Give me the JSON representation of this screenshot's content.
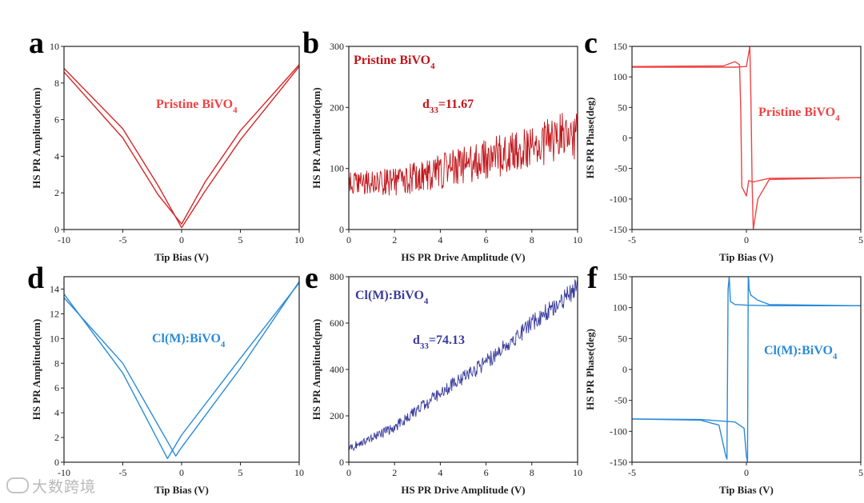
{
  "watermark": "大数跨境",
  "colors": {
    "red": "#d62728",
    "red_light": "#ee4444",
    "blue": "#2a8bd8",
    "navy": "#3a3c9c",
    "axis": "#222222"
  },
  "chart_data": [
    {
      "id": "a",
      "letter": "a",
      "type": "line",
      "xlabel": "Tip Bias (V)",
      "ylabel": "HS PR Amplitude(nm)",
      "xlim": [
        -10,
        10
      ],
      "ylim": [
        0,
        10
      ],
      "xticks": [
        -10,
        -5,
        0,
        5,
        10
      ],
      "yticks": [
        0,
        2,
        4,
        6,
        8,
        10
      ],
      "annotation": {
        "main": "Pristine BiVO",
        "sub": "4",
        "color": "#ee4444"
      },
      "series": [
        {
          "color": "#d62728",
          "x": [
            -10,
            -5,
            -2,
            0,
            2,
            5,
            10
          ],
          "y": [
            8.8,
            5.5,
            2.4,
            0.1,
            2.1,
            4.9,
            8.9
          ]
        },
        {
          "color": "#d62728",
          "x": [
            -10,
            -5,
            -2,
            0,
            2,
            5,
            10
          ],
          "y": [
            8.6,
            5.0,
            1.9,
            0.3,
            2.6,
            5.4,
            9.0
          ]
        }
      ]
    },
    {
      "id": "b",
      "letter": "b",
      "type": "scatter-line",
      "xlabel": "HS PR Drive Amplitude (V)",
      "ylabel": "HS PR Amplitude(pm)",
      "xlim": [
        0,
        10
      ],
      "ylim": [
        0,
        300
      ],
      "xticks": [
        0,
        2,
        4,
        6,
        8,
        10
      ],
      "yticks": [
        0,
        100,
        200,
        300
      ],
      "annotation": {
        "main": "Pristine BiVO",
        "sub": "4",
        "color": "#c0151a"
      },
      "d33": {
        "prefix": "d",
        "sub": "33",
        "value": "=11.67",
        "color": "#c0151a"
      },
      "series": [
        {
          "color": "#c0151a",
          "x": [
            0,
            2,
            4,
            6,
            8,
            10
          ],
          "y": [
            75,
            78,
            95,
            115,
            135,
            160
          ],
          "noise": 30
        }
      ]
    },
    {
      "id": "c",
      "letter": "c",
      "type": "line",
      "xlabel": "Tip Bias (V)",
      "ylabel": "HS PR Phase(deg)",
      "xlim": [
        -5,
        5
      ],
      "ylim": [
        -150,
        150
      ],
      "xticks": [
        -5,
        0,
        5
      ],
      "yticks": [
        -150,
        -100,
        -50,
        0,
        50,
        100,
        150
      ],
      "annotation": {
        "main": "Pristine BiVO",
        "sub": "4",
        "color": "#ee4444"
      },
      "series": [
        {
          "color": "#ee4444",
          "x": [
            -5,
            -1,
            -0.5,
            -0.3,
            -0.25,
            -0.2,
            0,
            0.1,
            0.3,
            1,
            5
          ],
          "y": [
            117,
            118,
            125,
            120,
            50,
            -80,
            -95,
            -70,
            -72,
            -66,
            -65
          ]
        },
        {
          "color": "#ee4444",
          "x": [
            -5,
            -0.5,
            0,
            0.15,
            0.2,
            0.25,
            0.3,
            0.5,
            1,
            5
          ],
          "y": [
            116,
            116,
            117,
            150,
            60,
            -70,
            -150,
            -100,
            -68,
            -65
          ]
        }
      ]
    },
    {
      "id": "d",
      "letter": "d",
      "type": "line",
      "xlabel": "Tip Bias (V)",
      "ylabel": "HS PR Amplitude(nm)",
      "xlim": [
        -10,
        10
      ],
      "ylim": [
        0,
        15
      ],
      "xticks": [
        -10,
        -5,
        0,
        5,
        10
      ],
      "yticks": [
        0,
        2,
        4,
        6,
        8,
        10,
        12,
        14
      ],
      "annotation": {
        "main": "Cl(M):BiVO",
        "sub": "4",
        "color": "#2a8bd8"
      },
      "series": [
        {
          "color": "#2a8bd8",
          "x": [
            -10,
            -5,
            -1.2,
            0,
            5,
            10
          ],
          "y": [
            13.6,
            7.2,
            0.3,
            2.2,
            8.4,
            14.5
          ]
        },
        {
          "color": "#2a8bd8",
          "x": [
            -10,
            -5,
            -0.5,
            0,
            5,
            10
          ],
          "y": [
            13.3,
            8.0,
            0.5,
            1.2,
            7.6,
            14.6
          ]
        }
      ]
    },
    {
      "id": "e",
      "letter": "e",
      "type": "scatter-line",
      "xlabel": "HS PR Drive Amplitude (V)",
      "ylabel": "HS PR Amplitude(pm)",
      "xlim": [
        0,
        10
      ],
      "ylim": [
        0,
        800
      ],
      "xticks": [
        0,
        2,
        4,
        6,
        8,
        10
      ],
      "yticks": [
        0,
        200,
        400,
        600,
        800
      ],
      "annotation": {
        "main": "Cl(M):BiVO",
        "sub": "4",
        "color": "#3a3c9c"
      },
      "d33": {
        "prefix": "d",
        "sub": "33",
        "value": "=74.13",
        "color": "#3a3c9c"
      },
      "series": [
        {
          "color": "#3a3c9c",
          "x": [
            0,
            2,
            4,
            6,
            8,
            10
          ],
          "y": [
            60,
            150,
            300,
            430,
            600,
            750
          ],
          "noise": 30
        }
      ]
    },
    {
      "id": "f",
      "letter": "f",
      "type": "line",
      "xlabel": "Tip Bias (V)",
      "ylabel": "HS PR Phase(deg)",
      "xlim": [
        -5,
        5
      ],
      "ylim": [
        -150,
        150
      ],
      "xticks": [
        -5,
        0,
        5
      ],
      "yticks": [
        -150,
        -100,
        -50,
        0,
        50,
        100,
        150
      ],
      "annotation": {
        "main": "Cl(M):BiVO",
        "sub": "4",
        "color": "#2a8bd8"
      },
      "series": [
        {
          "color": "#2a8bd8",
          "x": [
            -5,
            -2,
            -1.2,
            -0.9,
            -0.85,
            -0.8,
            -0.75,
            -0.7,
            -0.5,
            0,
            1,
            5
          ],
          "y": [
            -80,
            -82,
            -90,
            -140,
            -145,
            130,
            150,
            110,
            105,
            104,
            103,
            103
          ]
        },
        {
          "color": "#2a8bd8",
          "x": [
            -5,
            -2,
            -0.5,
            -0.1,
            0,
            0.05,
            0.08,
            0.1,
            0.12,
            0.2,
            0.5,
            1,
            5
          ],
          "y": [
            -80,
            -81,
            -85,
            -95,
            -140,
            -150,
            150,
            145,
            130,
            120,
            112,
            105,
            103
          ]
        }
      ]
    }
  ]
}
